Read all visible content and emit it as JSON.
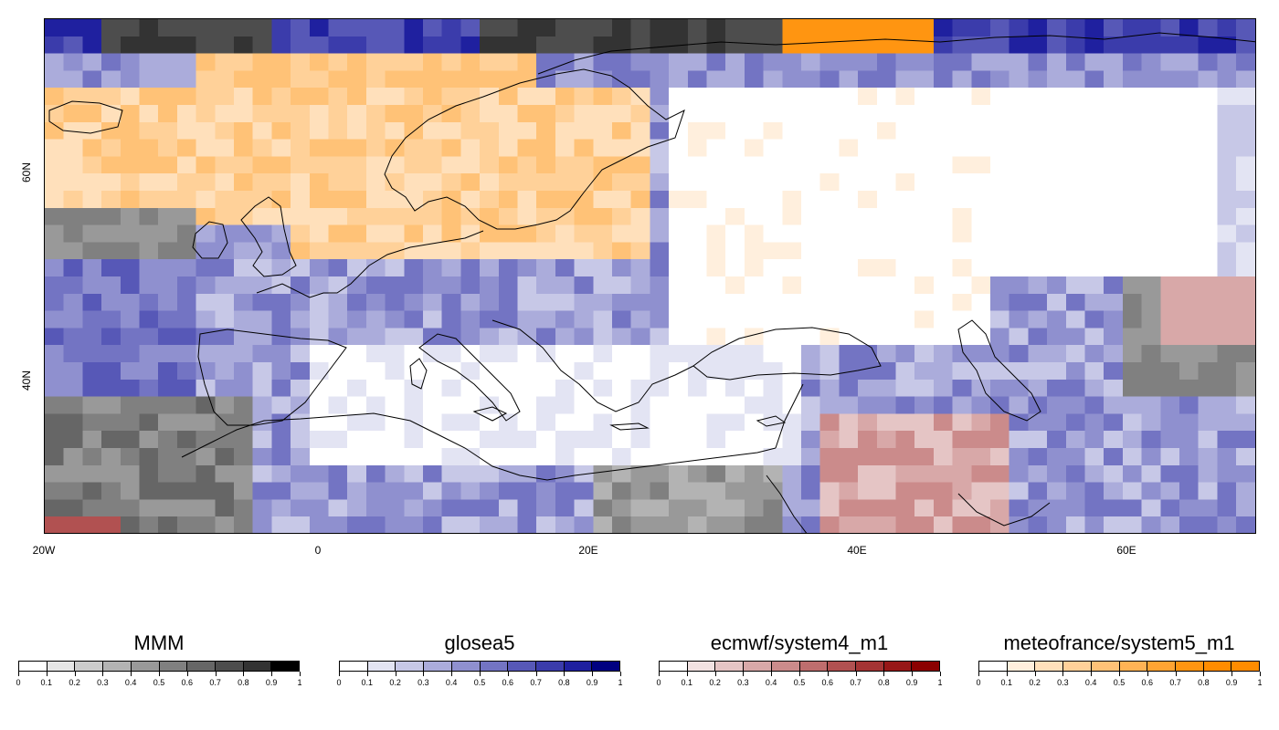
{
  "map": {
    "x_ticks": [
      "20W",
      "0",
      "20E",
      "40E",
      "60E"
    ],
    "y_ticks": [
      "60N",
      "40N"
    ],
    "lon_range": [
      -20,
      70
    ],
    "lat_range": [
      26,
      74
    ]
  },
  "legends": [
    {
      "title": "MMM",
      "colors": [
        "#ffffff",
        "#e6e6e6",
        "#cccccc",
        "#b3b3b3",
        "#999999",
        "#808080",
        "#666666",
        "#4d4d4d",
        "#333333",
        "#000000"
      ]
    },
    {
      "title": "glosea5",
      "colors": [
        "#ffffff",
        "#e3e4f3",
        "#c7c8e7",
        "#abacdb",
        "#8f90cf",
        "#7374c3",
        "#5758b7",
        "#3b3cab",
        "#1f209f",
        "#000080"
      ]
    },
    {
      "title": "ecmwf/system4_m1",
      "colors": [
        "#ffffff",
        "#f2e2e2",
        "#e5c5c5",
        "#d8a8a8",
        "#cb8b8b",
        "#be6e6e",
        "#b15151",
        "#a43434",
        "#971717",
        "#8b0000"
      ]
    },
    {
      "title": "meteofrance/system5_m1",
      "colors": [
        "#ffffff",
        "#ffefdd",
        "#ffe0bb",
        "#ffd199",
        "#ffc277",
        "#ffb355",
        "#ffa433",
        "#ff9511",
        "#ff8c00",
        "#ff8c00"
      ]
    }
  ],
  "legend_tick_labels": [
    "0",
    "0.1",
    "0.2",
    "0.3",
    "0.4",
    "0.5",
    "0.6",
    "0.7",
    "0.8",
    "0.9",
    "1"
  ]
}
